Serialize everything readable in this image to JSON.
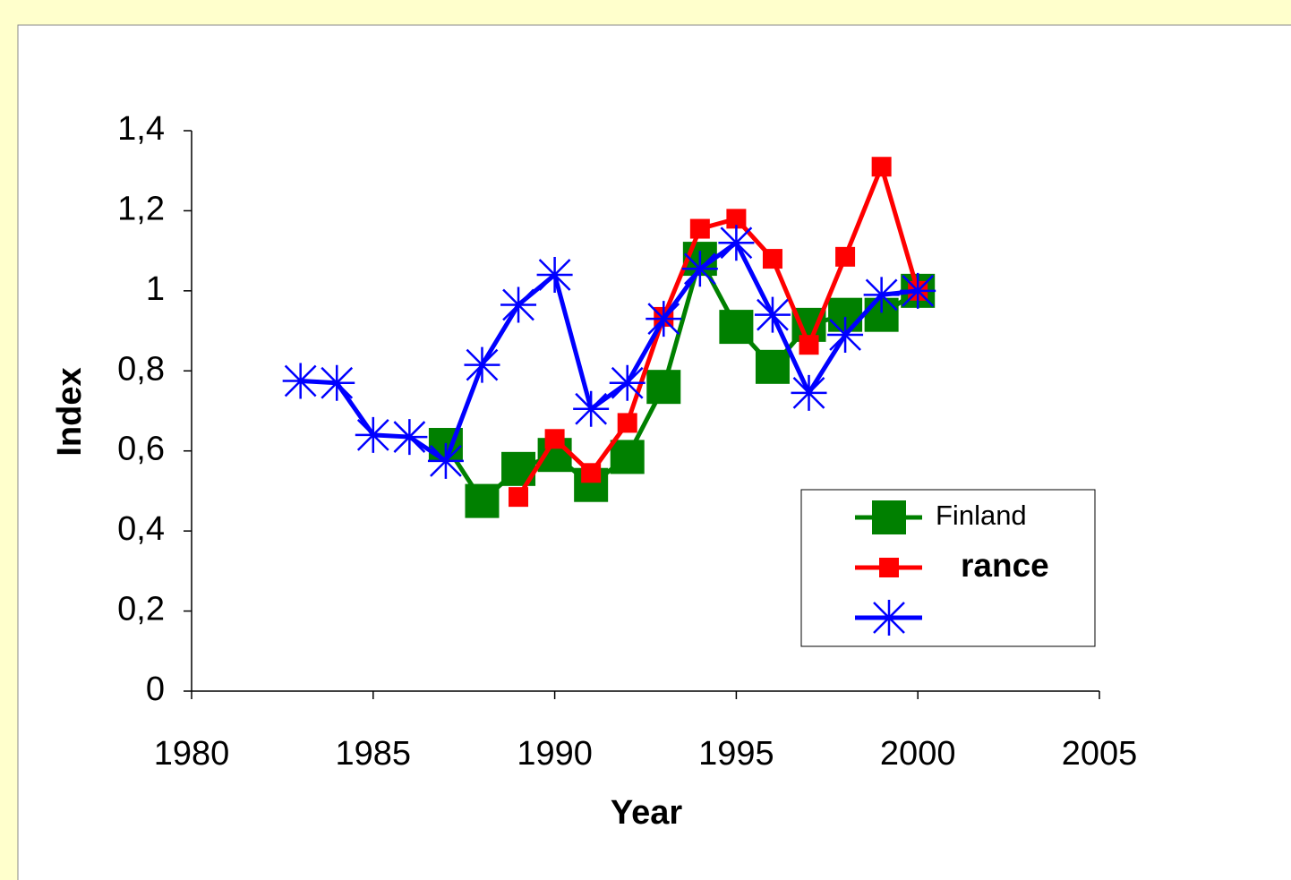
{
  "chart_data": {
    "type": "line",
    "x_label": "Year",
    "y_label": "Index",
    "x": [
      1983,
      1984,
      1985,
      1986,
      1987,
      1988,
      1989,
      1990,
      1991,
      1992,
      1993,
      1994,
      1995,
      1996,
      1997,
      1998,
      1999,
      2000
    ],
    "series": [
      {
        "name": "Finland",
        "color": "#008000",
        "marker": "square-large",
        "values": [
          null,
          null,
          null,
          null,
          0.615,
          0.475,
          0.555,
          0.59,
          0.515,
          0.585,
          0.76,
          1.08,
          0.91,
          0.81,
          0.915,
          0.94,
          0.94,
          1.0
        ]
      },
      {
        "name": "rance",
        "color": "#ff0000",
        "marker": "square",
        "values": [
          null,
          null,
          null,
          null,
          null,
          null,
          0.485,
          0.63,
          0.545,
          0.67,
          0.935,
          1.155,
          1.18,
          1.08,
          0.865,
          1.085,
          1.31,
          1.0
        ]
      },
      {
        "color": "#0000ff",
        "marker": "star",
        "values": [
          0.775,
          0.77,
          0.64,
          0.635,
          0.575,
          0.815,
          0.965,
          1.04,
          0.705,
          0.77,
          0.93,
          1.055,
          1.12,
          0.94,
          0.745,
          0.89,
          0.99,
          1.0
        ]
      }
    ],
    "xlim": [
      1980,
      2005
    ],
    "xticks": [
      1980,
      1985,
      1990,
      1995,
      2000,
      2005
    ],
    "ylim": [
      0,
      1.4
    ],
    "yticks": [
      0,
      {
        "value": 0.2,
        "label": "0,2"
      },
      {
        "value": 0.4,
        "label": "0,4"
      },
      {
        "value": 0.6,
        "label": "0,6"
      },
      {
        "value": 0.8,
        "label": "0,8"
      },
      1,
      {
        "value": 1.2,
        "label": "1,2"
      },
      {
        "value": 1.4,
        "label": "1,4"
      }
    ],
    "legend": "lower-right"
  }
}
